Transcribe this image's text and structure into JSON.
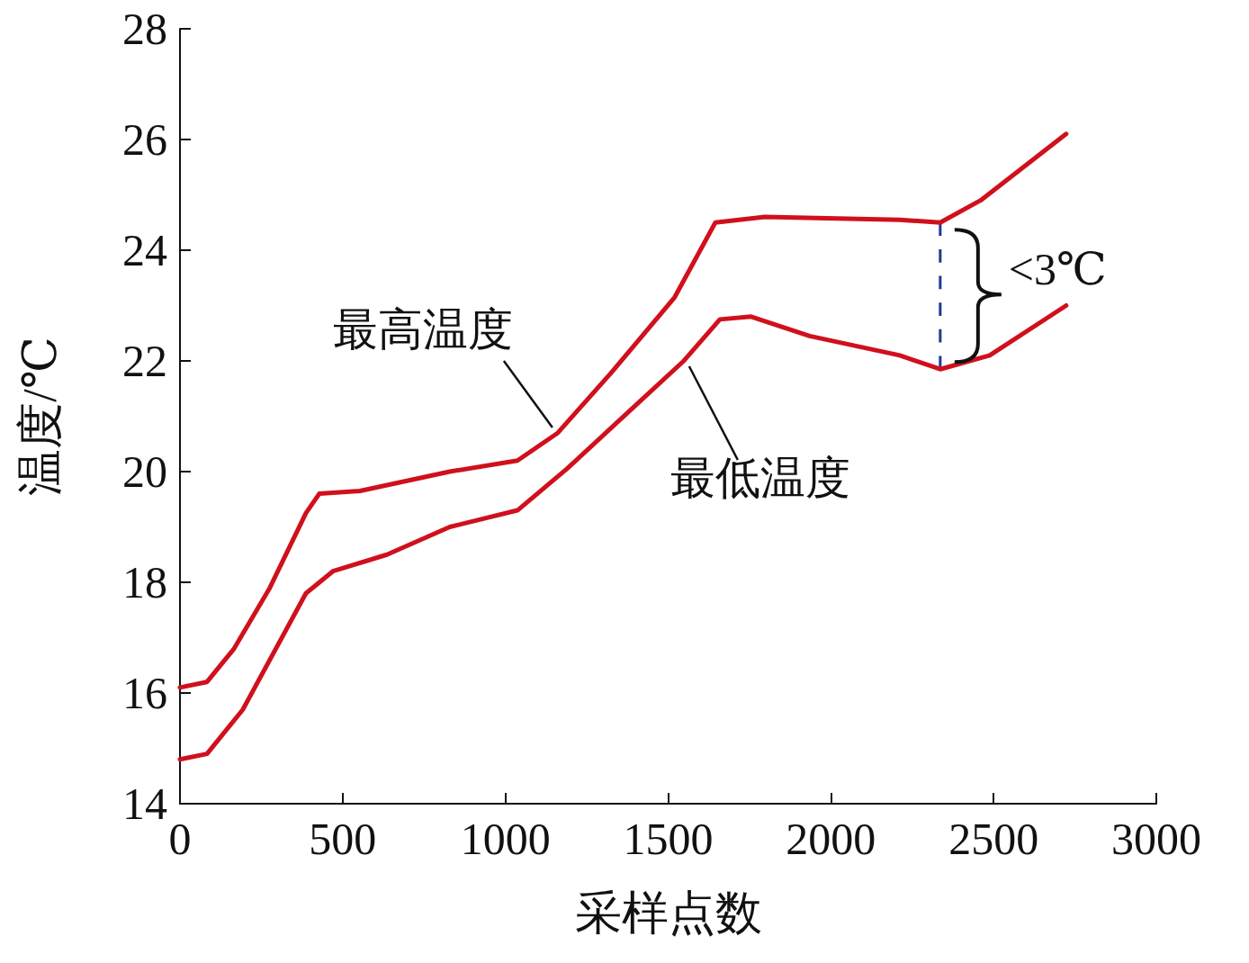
{
  "chart_data": {
    "type": "line",
    "xlabel": "采样点数",
    "ylabel": "温度/℃",
    "xlim": [
      0,
      3000
    ],
    "xticks": [
      0,
      500,
      1000,
      1500,
      2000,
      2500,
      3000
    ],
    "ylim": [
      14,
      28
    ],
    "yticks": [
      14,
      16,
      18,
      20,
      22,
      24,
      26,
      28
    ],
    "grid": false,
    "marker": "none",
    "series": [
      {
        "name": "最高温度",
        "color": "#d0101c",
        "line_style": "solid",
        "x": [
          0,
          83,
          166,
          276,
          387,
          428,
          553,
          829,
          1037,
          1161,
          1327,
          1520,
          1645,
          1797,
          2212,
          2336,
          2460,
          2723
        ],
        "values": [
          16.1,
          16.2,
          16.8,
          17.9,
          19.25,
          19.6,
          19.65,
          20.0,
          20.2,
          20.7,
          21.8,
          23.15,
          24.5,
          24.6,
          24.55,
          24.5,
          24.9,
          26.1
        ]
      },
      {
        "name": "最低温度",
        "color": "#d0101c",
        "line_style": "solid",
        "x": [
          0,
          83,
          193,
          387,
          470,
          636,
          829,
          1037,
          1189,
          1382,
          1548,
          1659,
          1755,
          1935,
          2212,
          2336,
          2488,
          2723
        ],
        "values": [
          14.8,
          14.9,
          15.7,
          17.8,
          18.2,
          18.5,
          19.0,
          19.3,
          20.05,
          21.1,
          22.0,
          22.75,
          22.8,
          22.45,
          22.1,
          21.85,
          22.1,
          23.0
        ]
      },
      {
        "color": "#1f3a93",
        "line_style": "dashed",
        "x": [
          2336,
          2336
        ],
        "values": [
          21.85,
          24.5
        ]
      }
    ],
    "annotations": [
      {
        "text": "<3℃",
        "x": 2336,
        "y": 23.2
      }
    ]
  }
}
